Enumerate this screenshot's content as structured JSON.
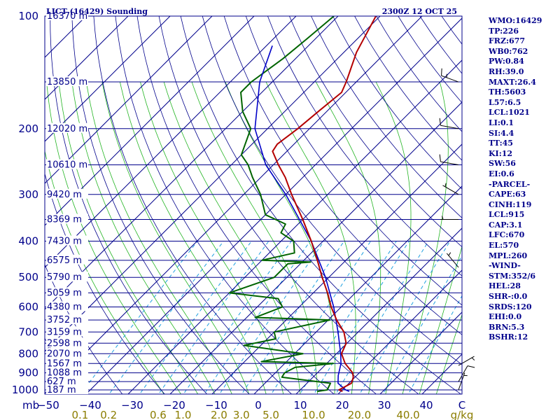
{
  "chart_data": {
    "type": "skew-t sounding",
    "title": "LICT (16429) Sounding",
    "time": "2300Z 12 OCT 25",
    "pressure_unit": "mb",
    "temp_unit": "C",
    "mixing_unit": "g/kg",
    "pressure_ticks": [
      100,
      200,
      300,
      400,
      500,
      600,
      700,
      800,
      900,
      1000
    ],
    "height_labels": [
      {
        "p": 100,
        "text": "16370 m"
      },
      {
        "p": 150,
        "text": "13850 m"
      },
      {
        "p": 200,
        "text": "12020 m"
      },
      {
        "p": 250,
        "text": "10610 m"
      },
      {
        "p": 300,
        "text": "9420 m"
      },
      {
        "p": 350,
        "text": "8369 m"
      },
      {
        "p": 400,
        "text": "7430 m"
      },
      {
        "p": 450,
        "text": "6575 m"
      },
      {
        "p": 500,
        "text": "5790 m"
      },
      {
        "p": 550,
        "text": "5059 m"
      },
      {
        "p": 600,
        "text": "4380 m"
      },
      {
        "p": 650,
        "text": "3752 m"
      },
      {
        "p": 700,
        "text": "3159 m"
      },
      {
        "p": 750,
        "text": "2598 m"
      },
      {
        "p": 800,
        "text": "2070 m"
      },
      {
        "p": 850,
        "text": "1567 m"
      },
      {
        "p": 900,
        "text": "1088 m"
      },
      {
        "p": 950,
        "text": "627 m"
      },
      {
        "p": 1000,
        "text": "187 m"
      }
    ],
    "temp_ticks": [
      -50,
      -40,
      -30,
      -20,
      -10,
      0,
      10,
      20,
      30,
      40
    ],
    "mixing_ratio_ticks": [
      0.1,
      0.2,
      0.6,
      1.0,
      2.0,
      3.0,
      5.0,
      10.0,
      20.0,
      40.0
    ],
    "temperature": [
      {
        "p": 1009,
        "t": 20.4
      },
      {
        "p": 1000,
        "t": 19.2
      },
      {
        "p": 960,
        "t": 20.6
      },
      {
        "p": 925,
        "t": 19.6
      },
      {
        "p": 900,
        "t": 18.4
      },
      {
        "p": 850,
        "t": 14.4
      },
      {
        "p": 800,
        "t": 11.2
      },
      {
        "p": 750,
        "t": 9.8
      },
      {
        "p": 700,
        "t": 6.6
      },
      {
        "p": 650,
        "t": 2.0
      },
      {
        "p": 600,
        "t": -2.4
      },
      {
        "p": 550,
        "t": -6.6
      },
      {
        "p": 500,
        "t": -11.6
      },
      {
        "p": 450,
        "t": -16.8
      },
      {
        "p": 400,
        "t": -22.8
      },
      {
        "p": 350,
        "t": -30.0
      },
      {
        "p": 300,
        "t": -38.6
      },
      {
        "p": 270,
        "t": -44.2
      },
      {
        "p": 250,
        "t": -48.8
      },
      {
        "p": 230,
        "t": -53.4
      },
      {
        "p": 220,
        "t": -54.0
      },
      {
        "p": 200,
        "t": -52.8
      },
      {
        "p": 180,
        "t": -52.0
      },
      {
        "p": 160,
        "t": -51.0
      },
      {
        "p": 150,
        "t": -52.4
      },
      {
        "p": 125,
        "t": -57.0
      },
      {
        "p": 100,
        "t": -61.0
      }
    ],
    "dewpoint": [
      {
        "p": 1009,
        "t": 14.4
      },
      {
        "p": 1000,
        "t": 16.4
      },
      {
        "p": 960,
        "t": 15.6
      },
      {
        "p": 925,
        "t": 2.6
      },
      {
        "p": 900,
        "t": 2.2
      },
      {
        "p": 870,
        "t": 3.4
      },
      {
        "p": 850,
        "t": 11.6
      },
      {
        "p": 840,
        "t": -6.0
      },
      {
        "p": 800,
        "t": 2.0
      },
      {
        "p": 760,
        "t": -14.0
      },
      {
        "p": 730,
        "t": -8.0
      },
      {
        "p": 700,
        "t": -10.0
      },
      {
        "p": 650,
        "t": 0.4
      },
      {
        "p": 640,
        "t": -18.0
      },
      {
        "p": 600,
        "t": -14.0
      },
      {
        "p": 570,
        "t": -17.0
      },
      {
        "p": 550,
        "t": -30.0
      },
      {
        "p": 500,
        "t": -23.0
      },
      {
        "p": 460,
        "t": -23.0
      },
      {
        "p": 455,
        "t": -18.0
      },
      {
        "p": 450,
        "t": -30.0
      },
      {
        "p": 430,
        "t": -24.0
      },
      {
        "p": 400,
        "t": -27.0
      },
      {
        "p": 380,
        "t": -32.0
      },
      {
        "p": 360,
        "t": -33.0
      },
      {
        "p": 340,
        "t": -40.0
      },
      {
        "p": 300,
        "t": -46.0
      },
      {
        "p": 270,
        "t": -52.0
      },
      {
        "p": 250,
        "t": -56.0
      },
      {
        "p": 235,
        "t": -60.0
      },
      {
        "p": 200,
        "t": -64.0
      },
      {
        "p": 180,
        "t": -70.0
      },
      {
        "p": 160,
        "t": -75.0
      },
      {
        "p": 150,
        "t": -75.0
      },
      {
        "p": 130,
        "t": -73.0
      },
      {
        "p": 115,
        "t": -72.0
      },
      {
        "p": 100,
        "t": -71.0
      }
    ],
    "parcel": [
      {
        "p": 1009,
        "t": 22.0
      },
      {
        "p": 1000,
        "t": 20.8
      },
      {
        "p": 960,
        "t": 17.4
      },
      {
        "p": 915,
        "t": 15.6
      },
      {
        "p": 850,
        "t": 13.4
      },
      {
        "p": 800,
        "t": 11.0
      },
      {
        "p": 700,
        "t": 5.2
      },
      {
        "p": 600,
        "t": -1.8
      },
      {
        "p": 500,
        "t": -10.8
      },
      {
        "p": 400,
        "t": -22.8
      },
      {
        "p": 300,
        "t": -40.0
      },
      {
        "p": 250,
        "t": -51.8
      },
      {
        "p": 200,
        "t": -63.0
      },
      {
        "p": 150,
        "t": -73.0
      },
      {
        "p": 120,
        "t": -78.6
      }
    ],
    "wind_barbs": [
      {
        "p": 150,
        "dir": 290,
        "kt": 15
      },
      {
        "p": 200,
        "dir": 280,
        "kt": 10
      },
      {
        "p": 250,
        "dir": 280,
        "kt": 10
      },
      {
        "p": 300,
        "dir": 300,
        "kt": 5
      },
      {
        "p": 350,
        "dir": 270,
        "kt": 5
      },
      {
        "p": 470,
        "dir": 320,
        "kt": 5
      },
      {
        "p": 860,
        "dir": 60,
        "kt": 5
      },
      {
        "p": 950,
        "dir": 30,
        "kt": 10
      },
      {
        "p": 1000,
        "dir": 20,
        "kt": 5
      }
    ]
  },
  "stats": [
    "WMO:16429",
    "TP:226",
    "FRZ:677",
    "WB0:762",
    "PW:0.84",
    "RH:39.0",
    "MAXT:26.4",
    "TH:5603",
    "L57:6.5",
    "LCL:1021",
    "LI:0.1",
    "SI:4.4",
    "TT:45",
    "KI:12",
    "SW:56",
    "EI:0.6",
    "-PARCEL-",
    "CAPE:63",
    "CINH:119",
    "LCL:915",
    "CAP:3.1",
    "LFC:670",
    "EL:570",
    "MPL:260",
    "-WIND-",
    "STM:352/6",
    "HEL:28",
    "SHR-:0.0",
    "SRDS:120",
    "EHI:0.0",
    "BRN:5.3",
    "BSHR:12"
  ],
  "colors": {
    "grid": "#00008b",
    "dry_adiabat": "#00008b",
    "moist_adiabat": "#22b422",
    "mixing_ratio": "#1fa0e0",
    "temperature": "#b40000",
    "dewpoint": "#006400",
    "parcel": "#0000c8",
    "mixing_label": "#8b7d00"
  }
}
